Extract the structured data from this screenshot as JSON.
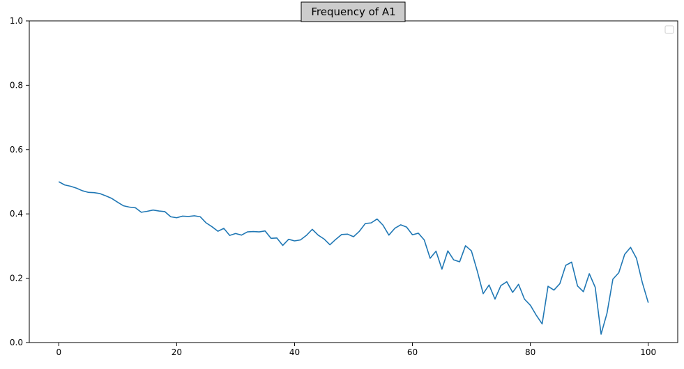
{
  "chart_data": {
    "type": "line",
    "title": "Frequency of A1",
    "xlabel": "",
    "ylabel": "",
    "xlim": [
      -5,
      105
    ],
    "ylim": [
      0,
      1
    ],
    "x_ticks": [
      0,
      20,
      40,
      60,
      80,
      100
    ],
    "y_ticks": [
      0.0,
      0.2,
      0.4,
      0.6,
      0.8,
      1.0
    ],
    "x_tick_labels": [
      "0",
      "20",
      "40",
      "60",
      "80",
      "100"
    ],
    "y_tick_labels": [
      "0.0",
      "0.2",
      "0.4",
      "0.6",
      "0.8",
      "1.0"
    ],
    "grid": false,
    "legend": "top-right, empty",
    "series": [
      {
        "color": "#1f77b4",
        "x": [
          0,
          1,
          2,
          3,
          4,
          5,
          6,
          7,
          8,
          9,
          10,
          11,
          12,
          13,
          14,
          15,
          16,
          17,
          18,
          19,
          20,
          21,
          22,
          23,
          24,
          25,
          26,
          27,
          28,
          29,
          30,
          31,
          32,
          33,
          34,
          35,
          36,
          37,
          38,
          39,
          40,
          41,
          42,
          43,
          44,
          45,
          46,
          47,
          48,
          49,
          50,
          51,
          52,
          53,
          54,
          55,
          56,
          57,
          58,
          59,
          60,
          61,
          62,
          63,
          64,
          65,
          66,
          67,
          68,
          69,
          70,
          71,
          72,
          73,
          74,
          75,
          76,
          77,
          78,
          79,
          80,
          81,
          82,
          83,
          84,
          85,
          86,
          87,
          88,
          89,
          90,
          91,
          92,
          93,
          94,
          95,
          96,
          97,
          98,
          99,
          100
        ],
        "y": [
          0.5,
          0.49,
          0.486,
          0.48,
          0.472,
          0.467,
          0.466,
          0.463,
          0.456,
          0.448,
          0.436,
          0.425,
          0.421,
          0.419,
          0.405,
          0.408,
          0.412,
          0.409,
          0.407,
          0.391,
          0.388,
          0.393,
          0.392,
          0.394,
          0.391,
          0.372,
          0.36,
          0.346,
          0.355,
          0.333,
          0.339,
          0.334,
          0.344,
          0.345,
          0.344,
          0.347,
          0.324,
          0.325,
          0.302,
          0.321,
          0.316,
          0.319,
          0.333,
          0.352,
          0.334,
          0.322,
          0.304,
          0.321,
          0.336,
          0.337,
          0.329,
          0.346,
          0.37,
          0.372,
          0.384,
          0.365,
          0.334,
          0.355,
          0.366,
          0.359,
          0.335,
          0.34,
          0.319,
          0.262,
          0.284,
          0.228,
          0.285,
          0.257,
          0.251,
          0.301,
          0.285,
          0.222,
          0.152,
          0.179,
          0.135,
          0.177,
          0.189,
          0.156,
          0.181,
          0.135,
          0.116,
          0.085,
          0.058,
          0.175,
          0.163,
          0.183,
          0.24,
          0.25,
          0.176,
          0.158,
          0.214,
          0.172,
          0.026,
          0.091,
          0.197,
          0.217,
          0.274,
          0.296,
          0.262,
          0.186,
          0.124
        ]
      }
    ]
  }
}
